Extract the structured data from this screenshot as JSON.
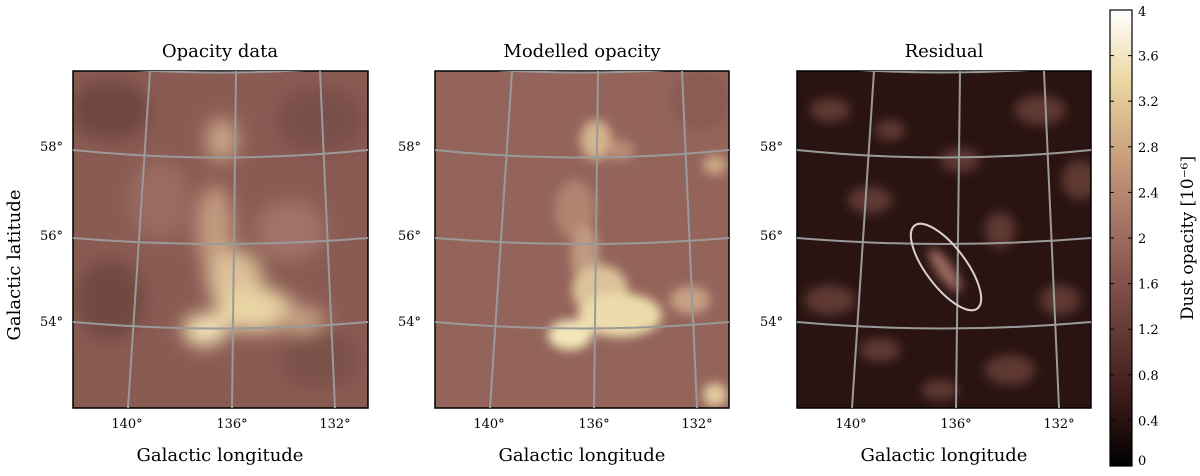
{
  "chart_data": {
    "type": "heatmap",
    "panels": [
      {
        "title": "Opacity data"
      },
      {
        "title": "Modelled opacity"
      },
      {
        "title": "Residual",
        "ellipse": true
      }
    ],
    "xlabel": "Galactic longitude",
    "ylabel": "Galactic latitude",
    "x_ticks": [
      "140°",
      "136°",
      "132°"
    ],
    "y_ticks": [
      "58°",
      "56°",
      "54°"
    ],
    "colorbar": {
      "label": "Dust opacity [10⁻⁶]",
      "ticks": [
        "4",
        "3.6",
        "3.2",
        "2.8",
        "2.4",
        "2",
        "1.6",
        "1.2",
        "0.8",
        "0.4",
        "0"
      ],
      "range": [
        0,
        4
      ],
      "colors": [
        "#000000",
        "#3b1b19",
        "#6b3f3a",
        "#9c6a60",
        "#c9a07e",
        "#ecd9a3",
        "#ffffff"
      ]
    },
    "grid": true
  }
}
